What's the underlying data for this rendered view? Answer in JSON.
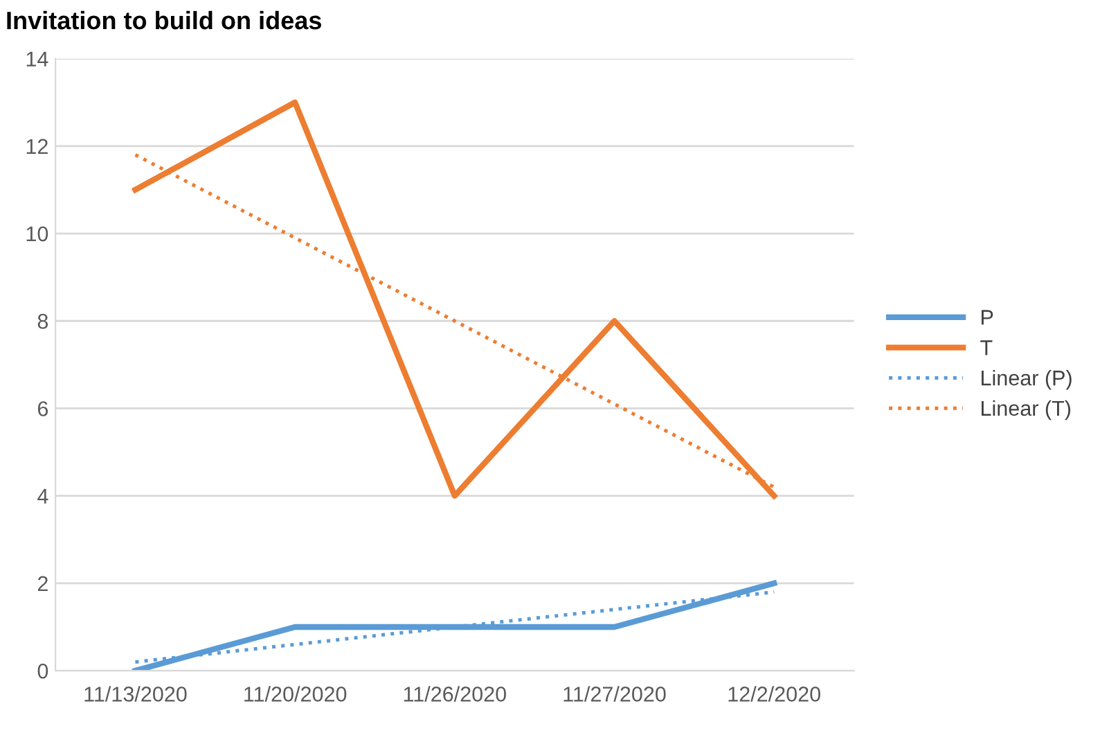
{
  "chart_data": {
    "type": "line",
    "title": "Invitation to build on ideas",
    "categories": [
      "11/13/2020",
      "11/20/2020",
      "11/26/2020",
      "11/27/2020",
      "12/2/2020"
    ],
    "series": [
      {
        "name": "P",
        "color": "#5b9bd5",
        "values": [
          0,
          1,
          1,
          1,
          2
        ]
      },
      {
        "name": "T",
        "color": "#ed7d31",
        "values": [
          11,
          13,
          4,
          8,
          4
        ]
      },
      {
        "name": "Linear (P)",
        "color": "#5b9bd5",
        "values": [
          0.2,
          0.6,
          1.0,
          1.4,
          1.8
        ],
        "line_style": "dotted"
      },
      {
        "name": "Linear (T)",
        "color": "#ed7d31",
        "values": [
          11.8,
          9.9,
          8.0,
          6.1,
          4.2
        ],
        "line_style": "dotted"
      }
    ],
    "ylim": [
      0,
      14
    ],
    "yticks": [
      0,
      2,
      4,
      6,
      8,
      10,
      12,
      14
    ],
    "grid": "y",
    "legend": "right",
    "marker": "none"
  }
}
